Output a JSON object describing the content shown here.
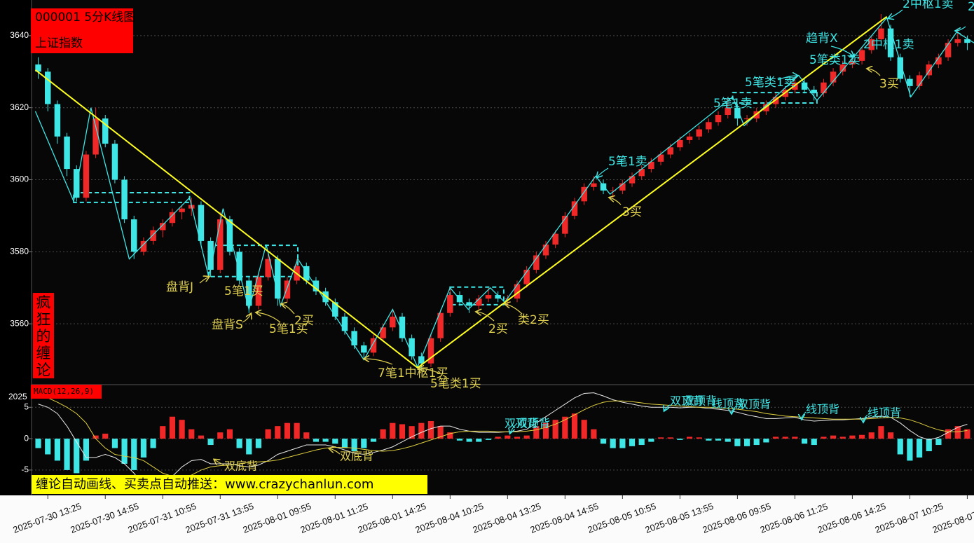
{
  "chart_data": [
    {
      "type": "candlestick",
      "title": "000001 5分K线图",
      "subtitle": "上证指数",
      "side_label": "疯狂的缠论",
      "up_color": "#f02828",
      "down_color": "#3ee6e6",
      "x": [
        -1,
        0,
        1,
        2,
        3,
        4,
        5,
        6,
        7,
        8,
        9,
        10,
        11,
        12,
        13,
        14,
        15,
        16,
        17,
        18,
        19,
        20,
        21,
        22,
        23,
        24,
        25,
        26,
        27,
        28,
        29,
        30,
        31,
        32,
        33,
        34,
        35,
        36,
        37,
        38,
        39,
        40,
        41,
        42,
        43,
        44,
        45,
        46,
        47,
        48,
        49,
        50,
        51,
        52,
        53,
        54,
        55,
        56,
        57,
        58,
        59,
        60,
        61,
        62,
        63,
        64,
        65,
        66,
        67,
        68,
        69,
        70,
        71,
        72,
        73,
        74,
        75,
        76,
        77,
        78,
        79,
        80,
        81,
        82,
        83,
        84,
        85,
        86,
        87,
        88,
        89,
        90,
        91,
        92,
        93,
        94,
        95,
        96
      ],
      "open": [
        3632,
        3630,
        3621,
        3612,
        3603,
        3595,
        3607,
        3617,
        3610,
        3600,
        3589,
        3580,
        3583,
        3586,
        3588,
        3591,
        3592,
        3593,
        3583,
        3575,
        3589,
        3580,
        3572,
        3565,
        3573,
        3578,
        3567,
        3572,
        3576,
        3572,
        3569,
        3566,
        3562,
        3558,
        3554,
        3552,
        3556,
        3559,
        3562,
        3556,
        3551,
        3549,
        3556,
        3563,
        3568,
        3566,
        3565,
        3567,
        3568,
        3567,
        3567,
        3571,
        3575,
        3579,
        3582,
        3585,
        3590,
        3594,
        3598,
        3599,
        3597,
        3597,
        3599,
        3601,
        3603,
        3605,
        3607,
        3609,
        3611,
        3612,
        3614,
        3616,
        3618,
        3620,
        3617,
        3617,
        3619,
        3621,
        3623,
        3625,
        3627,
        3625,
        3624,
        3627,
        3630,
        3632,
        3633,
        3636,
        3639,
        3642,
        3634,
        3628,
        3626,
        3629,
        3632,
        3634,
        3638,
        3639
      ],
      "high": [
        3634,
        3631,
        3622,
        3613,
        3604,
        3608,
        3620,
        3618,
        3611,
        3601,
        3590,
        3584,
        3587,
        3589,
        3592,
        3593,
        3595,
        3594,
        3584,
        3591,
        3590,
        3581,
        3573,
        3574,
        3580,
        3579,
        3573,
        3578,
        3577,
        3573,
        3570,
        3567,
        3563,
        3559,
        3555,
        3557,
        3560,
        3564,
        3563,
        3557,
        3552,
        3557,
        3564,
        3570,
        3569,
        3567,
        3568,
        3570,
        3569,
        3568,
        3572,
        3576,
        3580,
        3583,
        3586,
        3591,
        3595,
        3599,
        3601,
        3600,
        3598,
        3600,
        3602,
        3604,
        3606,
        3608,
        3610,
        3612,
        3613,
        3615,
        3617,
        3619,
        3623,
        3621,
        3618,
        3620,
        3622,
        3624,
        3626,
        3629,
        3628,
        3626,
        3628,
        3631,
        3633,
        3634,
        3637,
        3640,
        3646,
        3643,
        3635,
        3629,
        3630,
        3633,
        3635,
        3639,
        3642,
        3640
      ],
      "low": [
        3628,
        3619,
        3610,
        3601,
        3594,
        3594,
        3606,
        3609,
        3599,
        3588,
        3578,
        3579,
        3582,
        3584,
        3587,
        3589,
        3590,
        3582,
        3573,
        3574,
        3579,
        3571,
        3563,
        3564,
        3572,
        3565,
        3566,
        3571,
        3571,
        3568,
        3565,
        3561,
        3557,
        3553,
        3550,
        3551,
        3555,
        3558,
        3555,
        3550,
        3547,
        3548,
        3555,
        3562,
        3565,
        3563,
        3564,
        3566,
        3566,
        3565,
        3566,
        3570,
        3574,
        3578,
        3581,
        3584,
        3589,
        3593,
        3597,
        3596,
        3595,
        3596,
        3598,
        3600,
        3602,
        3604,
        3606,
        3608,
        3610,
        3611,
        3613,
        3615,
        3617,
        3615,
        3615,
        3616,
        3618,
        3620,
        3622,
        3624,
        3624,
        3622,
        3623,
        3626,
        3629,
        3631,
        3632,
        3635,
        3638,
        3633,
        3627,
        3623,
        3625,
        3628,
        3631,
        3633,
        3637,
        3636
      ],
      "close": [
        3630,
        3621,
        3612,
        3603,
        3595,
        3607,
        3617,
        3610,
        3600,
        3589,
        3580,
        3583,
        3586,
        3588,
        3591,
        3592,
        3593,
        3583,
        3575,
        3589,
        3580,
        3572,
        3565,
        3573,
        3578,
        3567,
        3572,
        3576,
        3572,
        3569,
        3566,
        3562,
        3558,
        3554,
        3552,
        3556,
        3559,
        3562,
        3556,
        3551,
        3549,
        3556,
        3563,
        3568,
        3566,
        3565,
        3567,
        3568,
        3567,
        3567,
        3571,
        3575,
        3579,
        3582,
        3585,
        3590,
        3594,
        3598,
        3599,
        3597,
        3597,
        3599,
        3601,
        3603,
        3605,
        3607,
        3609,
        3611,
        3612,
        3614,
        3616,
        3618,
        3620,
        3617,
        3617,
        3619,
        3621,
        3623,
        3625,
        3627,
        3625,
        3624,
        3627,
        3630,
        3632,
        3633,
        3636,
        3639,
        3642,
        3634,
        3628,
        3626,
        3629,
        3632,
        3634,
        3638,
        3639,
        3638
      ],
      "xlim": [
        -1.7,
        96.7
      ],
      "xticks": [
        {
          "value": 0,
          "label": "2025-07-30 13:25"
        },
        {
          "value": 6,
          "label": "2025-07-30 14:55"
        },
        {
          "value": 12,
          "label": "2025-07-31 10:55"
        },
        {
          "value": 18,
          "label": "2025-07-31 13:55"
        },
        {
          "value": 24,
          "label": "2025-08-01 09:55"
        },
        {
          "value": 30,
          "label": "2025-08-01 11:25"
        },
        {
          "value": 36,
          "label": "2025-08-01 14:25"
        },
        {
          "value": 42,
          "label": "2025-08-04 10:25"
        },
        {
          "value": 48,
          "label": "2025-08-04 13:25"
        },
        {
          "value": 54,
          "label": "2025-08-04 14:55"
        },
        {
          "value": 60,
          "label": "2025-08-05 10:55"
        },
        {
          "value": 66,
          "label": "2025-08-05 13:55"
        },
        {
          "value": 72,
          "label": "2025-08-06 09:55"
        },
        {
          "value": 78,
          "label": "2025-08-06 11:25"
        },
        {
          "value": 84,
          "label": "2025-08-06 14:25"
        },
        {
          "value": 90,
          "label": "2025-08-07 10:25"
        },
        {
          "value": 96,
          "label": "2025-08-07"
        }
      ],
      "ylim": [
        3543.3,
        3649.9
      ],
      "yticks": [
        3560,
        3580,
        3600,
        3620,
        3640
      ],
      "grid": true,
      "bi": {
        "color": "#3ee6e6",
        "x": [
          -1.3,
          2.7,
          4.5,
          8.5,
          14.8,
          16.8,
          18.3,
          21,
          22.8,
          24.3,
          26.1,
          33,
          36,
          38.6,
          42,
          43.9,
          46.2,
          47.7,
          57.2,
          58.7,
          71.5,
          72.7,
          78.4,
          80.3,
          87.6,
          90.1,
          94.9,
          96.7
        ],
        "y": [
          3619,
          3594,
          3620,
          3578,
          3595,
          3573,
          3592,
          3564,
          3582,
          3565,
          3578,
          3550,
          3564,
          3548,
          3570,
          3564,
          3570,
          3566,
          3601,
          3596,
          3623,
          3615,
          3629,
          3622,
          3645,
          3623,
          3641,
          3638
        ]
      },
      "segments": {
        "color": "#ffff20",
        "x": [
          -1.3,
          38.6,
          87.6
        ],
        "y": [
          3630.5,
          3547.8,
          3645.3
        ]
      },
      "zhongshu": [
        {
          "x0": 2.7,
          "x1": 14.8,
          "low": 3593.7,
          "high": 3596.4
        },
        {
          "x0": 16.8,
          "x1": 26.1,
          "low": 3573.1,
          "high": 3581.8
        },
        {
          "x0": 42,
          "x1": 47.6,
          "low": 3565.3,
          "high": 3570.2
        },
        {
          "x0": 71.5,
          "x1": 80.3,
          "low": 3621.3,
          "high": 3624.2
        }
      ],
      "zhongshu_color": "#3ee6e6",
      "annotations": [
        {
          "text": "盘背J",
          "color": "#e0d050"
        },
        {
          "text": "5笔1买",
          "color": "#e0d050"
        },
        {
          "text": "盘背S",
          "color": "#e0d050"
        },
        {
          "text": "5笔1买",
          "color": "#e0d050"
        },
        {
          "text": "2买",
          "color": "#e0d050"
        },
        {
          "text": "7笔1中枢1买",
          "color": "#e0d050"
        },
        {
          "text": "5笔类1买",
          "color": "#e0d050"
        },
        {
          "text": "2买",
          "color": "#e0d050"
        },
        {
          "text": "类2买",
          "color": "#e0d050"
        },
        {
          "text": "3买",
          "color": "#e0d050"
        },
        {
          "text": "3买",
          "color": "#e0d050"
        },
        {
          "text": "5笔1卖",
          "color": "#3ee6e6"
        },
        {
          "text": "5笔1卖",
          "color": "#3ee6e6"
        },
        {
          "text": "5笔类1卖",
          "color": "#3ee6e6"
        },
        {
          "text": "趋背X",
          "color": "#3ee6e6"
        },
        {
          "text": "5笔类1卖",
          "color": "#3ee6e6"
        },
        {
          "text": "2中枢1卖",
          "color": "#3ee6e6"
        },
        {
          "text": "2中枢1卖",
          "color": "#3ee6e6"
        },
        {
          "text": "2",
          "color": "#3ee6e6"
        }
      ]
    },
    {
      "type": "macd",
      "title": "MACD(12,26,9)",
      "top_label": "2025",
      "banner": "缠论自动画线、买卖点自动推送：www.crazychanlun.com",
      "xlim": [
        -1.7,
        96.7
      ],
      "ylim": [
        -9.25,
        8.6
      ],
      "yticks": [
        -5,
        0,
        5
      ],
      "grid": true,
      "up_color": "#f02828",
      "down_color": "#3ee6e6",
      "x": [
        -1,
        0,
        1,
        2,
        3,
        4,
        5,
        6,
        7,
        8,
        9,
        10,
        11,
        12,
        13,
        14,
        15,
        16,
        17,
        18,
        19,
        20,
        21,
        22,
        23,
        24,
        25,
        26,
        27,
        28,
        29,
        30,
        31,
        32,
        33,
        34,
        35,
        36,
        37,
        38,
        39,
        40,
        41,
        42,
        43,
        44,
        45,
        46,
        47,
        48,
        49,
        50,
        51,
        52,
        53,
        54,
        55,
        56,
        57,
        58,
        59,
        60,
        61,
        62,
        63,
        64,
        65,
        66,
        67,
        68,
        69,
        70,
        71,
        72,
        73,
        74,
        75,
        76,
        77,
        78,
        79,
        80,
        81,
        82,
        83,
        84,
        85,
        86,
        87,
        88,
        89,
        90,
        91,
        92,
        93,
        94,
        95,
        96
      ],
      "histogram": [
        -1.5,
        -2.5,
        -3.5,
        -5,
        -5.5,
        -3.5,
        0.5,
        0.8,
        -1.5,
        -4,
        -5,
        -3,
        -1.5,
        2,
        3.5,
        3,
        1.5,
        0.5,
        -1,
        1,
        1.5,
        -1.5,
        -2.5,
        -1.5,
        1.5,
        2,
        2.5,
        2.5,
        1,
        -0.5,
        -0.5,
        -0.8,
        -1.5,
        -2,
        -1.5,
        -0.5,
        1.5,
        2.5,
        2.3,
        2,
        2.5,
        2.8,
        2,
        1,
        -0.3,
        -0.5,
        -0.5,
        -0.2,
        0.3,
        0.5,
        0.3,
        0.5,
        2,
        2.5,
        3,
        3.5,
        4,
        3,
        1.5,
        -0.8,
        -1.5,
        -1.5,
        -1.2,
        -1,
        -0.5,
        0.2,
        0.2,
        -0.2,
        0.3,
        0.2,
        -0.3,
        -0.3,
        -0.5,
        -1.2,
        -1.2,
        -1,
        -0.6,
        0.3,
        0.3,
        0.3,
        -0.8,
        -1,
        0.3,
        0.5,
        0.3,
        0.5,
        0.6,
        1,
        2,
        1,
        -2.5,
        -3.5,
        -3,
        -2,
        -1,
        1.5,
        2,
        1.5
      ],
      "dif": {
        "color": "#e8e8e8",
        "values": [
          5.5,
          5,
          4,
          2,
          -0.5,
          -3,
          -3,
          -2.5,
          -3,
          -4,
          -5.5,
          -7.5,
          -8,
          -7,
          -6,
          -4.5,
          -3.5,
          -3.3,
          -4,
          -4,
          -4,
          -4.3,
          -4.5,
          -4.2,
          -3.5,
          -2.5,
          -2,
          -1.5,
          -1,
          -1,
          -1,
          -1.3,
          -1.8,
          -2.3,
          -2.5,
          -2.2,
          -1.8,
          -1.3,
          -0.5,
          0.3,
          1,
          1.6,
          2,
          2,
          1.5,
          1.2,
          1,
          1,
          1,
          1.1,
          1.2,
          1.5,
          2.5,
          3.5,
          4.5,
          5.5,
          6.5,
          7.2,
          7.3,
          6.8,
          6.2,
          5.8,
          5.5,
          5.2,
          5,
          5,
          5,
          4.9,
          5,
          5,
          4.8,
          4.7,
          4.5,
          4.2,
          3.8,
          3.5,
          3.2,
          3.2,
          3.3,
          3.4,
          3,
          2.8,
          2.9,
          3,
          3,
          3.1,
          3.2,
          3.4,
          3.6,
          3.4,
          2.5,
          1.3,
          0.3,
          -0.2,
          0.2,
          1,
          1.8,
          2.3
        ]
      },
      "dea": {
        "color": "#e0d040",
        "values": [
          7,
          6.5,
          5.8,
          5,
          4,
          2.5,
          0,
          -1.5,
          -2.5,
          -2.8,
          -3,
          -3.5,
          -4.5,
          -5.5,
          -6,
          -6.2,
          -5.8,
          -5,
          -4.5,
          -4.3,
          -4.2,
          -4,
          -3.8,
          -3.7,
          -3.6,
          -3.4,
          -3,
          -2.6,
          -2.2,
          -1.8,
          -1.5,
          -1.4,
          -1.4,
          -1.5,
          -1.7,
          -1.9,
          -2,
          -1.9,
          -1.6,
          -1.2,
          -0.7,
          -0.2,
          0.3,
          0.8,
          1.1,
          1.2,
          1.2,
          1.2,
          1.1,
          1.1,
          1.1,
          1.2,
          1.4,
          1.8,
          2.3,
          3,
          3.8,
          4.6,
          5.3,
          5.8,
          6,
          6,
          5.9,
          5.7,
          5.5,
          5.4,
          5.3,
          5.2,
          5.1,
          5,
          5,
          4.9,
          4.8,
          4.7,
          4.5,
          4.3,
          4,
          3.8,
          3.6,
          3.5,
          3.4,
          3.3,
          3.2,
          3.1,
          3.1,
          3.1,
          3.1,
          3.2,
          3.3,
          3.4,
          3.3,
          3,
          2.5,
          1.9,
          1.4,
          1.1,
          1.1,
          1.3
        ]
      },
      "annotations": [
        {
          "text": "双顶背",
          "color": "#3ee6e6"
        },
        {
          "text": "双顶背",
          "color": "#3ee6e6"
        },
        {
          "text": "双顶背",
          "color": "#3ee6e6"
        },
        {
          "text": "双顶背",
          "color": "#3ee6e6"
        },
        {
          "text": "线顶背",
          "color": "#3ee6e6"
        },
        {
          "text": "双顶背",
          "color": "#3ee6e6"
        },
        {
          "text": "线顶背",
          "color": "#3ee6e6"
        },
        {
          "text": "线顶背",
          "color": "#3ee6e6"
        },
        {
          "text": "双底背",
          "color": "#e0d050"
        },
        {
          "text": "双底背",
          "color": "#e0d050"
        }
      ]
    }
  ]
}
